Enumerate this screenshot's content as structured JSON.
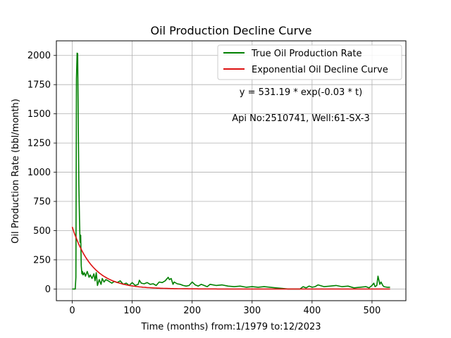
{
  "chart_data": {
    "type": "line",
    "title": "Oil Production Decline Curve",
    "xlabel": "Time (months) from:1/1979 to:12/2023",
    "ylabel": "Oil Production Rate (bbl/month)",
    "xlim": [
      -26.5,
      556.5
    ],
    "ylim": [
      -100,
      2125
    ],
    "x_ticks": [
      0,
      100,
      200,
      300,
      400,
      500
    ],
    "y_ticks": [
      0,
      250,
      500,
      750,
      1000,
      1250,
      1500,
      1750,
      2000
    ],
    "grid": true,
    "legend_position": "top-right",
    "annotations": [
      "y = 531.19 * exp(-0.03 * t)",
      "Api No:2510741, Well:61-SX-3"
    ],
    "series": [
      {
        "name": "True Oil Production Rate",
        "color": "#008000",
        "x": [
          0,
          5,
          6,
          7,
          8,
          9,
          10,
          11,
          12,
          13,
          14,
          15,
          16,
          17,
          18,
          20,
          22,
          25,
          28,
          30,
          33,
          36,
          38,
          40,
          42,
          45,
          48,
          50,
          53,
          56,
          60,
          63,
          66,
          70,
          75,
          80,
          85,
          90,
          95,
          100,
          105,
          110,
          112,
          115,
          120,
          125,
          130,
          135,
          140,
          145,
          150,
          155,
          160,
          162,
          165,
          168,
          170,
          175,
          180,
          185,
          190,
          195,
          200,
          205,
          210,
          215,
          220,
          225,
          230,
          240,
          250,
          260,
          270,
          280,
          290,
          300,
          310,
          320,
          330,
          340,
          350,
          360,
          370,
          380,
          385,
          390,
          395,
          400,
          405,
          410,
          420,
          430,
          440,
          450,
          460,
          470,
          480,
          490,
          495,
          500,
          503,
          505,
          508,
          510,
          513,
          515,
          518,
          520,
          525,
          530
        ],
        "y": [
          0,
          0,
          100,
          1800,
          2020,
          2015,
          1400,
          900,
          600,
          400,
          460,
          200,
          130,
          150,
          120,
          140,
          110,
          150,
          100,
          120,
          90,
          130,
          70,
          140,
          30,
          80,
          40,
          90,
          60,
          80,
          70,
          60,
          50,
          65,
          55,
          70,
          40,
          50,
          30,
          55,
          30,
          40,
          75,
          50,
          45,
          55,
          40,
          45,
          30,
          60,
          55,
          70,
          100,
          80,
          90,
          40,
          60,
          45,
          40,
          30,
          25,
          30,
          60,
          35,
          25,
          40,
          30,
          20,
          40,
          30,
          35,
          25,
          20,
          25,
          15,
          20,
          15,
          20,
          15,
          10,
          5,
          0,
          0,
          0,
          20,
          10,
          25,
          15,
          20,
          35,
          20,
          25,
          30,
          20,
          25,
          10,
          15,
          20,
          10,
          30,
          50,
          20,
          30,
          110,
          40,
          60,
          30,
          20,
          15,
          15
        ]
      },
      {
        "name": "Exponential Oil Decline Curve",
        "color": "#dd1111",
        "model": {
          "a": 531.19,
          "b": 0.03,
          "t_start": 0,
          "t_end": 530
        }
      }
    ]
  }
}
